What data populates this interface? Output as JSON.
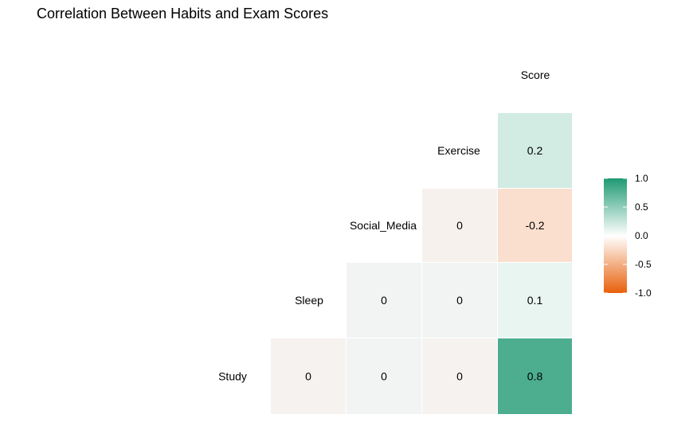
{
  "chart_data": {
    "type": "heatmap",
    "title": "Correlation Between Habits and Exam Scores",
    "variables": [
      "Study",
      "Sleep",
      "Social_Media",
      "Exercise",
      "Score"
    ],
    "cells": [
      {
        "row": "Study",
        "col": "Sleep",
        "value": 0,
        "label": "0"
      },
      {
        "row": "Study",
        "col": "Social_Media",
        "value": 0,
        "label": "0"
      },
      {
        "row": "Study",
        "col": "Exercise",
        "value": 0,
        "label": "0"
      },
      {
        "row": "Study",
        "col": "Score",
        "value": 0.8,
        "label": "0.8"
      },
      {
        "row": "Sleep",
        "col": "Social_Media",
        "value": 0,
        "label": "0"
      },
      {
        "row": "Sleep",
        "col": "Exercise",
        "value": 0,
        "label": "0"
      },
      {
        "row": "Sleep",
        "col": "Score",
        "value": 0.1,
        "label": "0.1"
      },
      {
        "row": "Social_Media",
        "col": "Exercise",
        "value": 0,
        "label": "0"
      },
      {
        "row": "Social_Media",
        "col": "Score",
        "value": -0.2,
        "label": "-0.2"
      },
      {
        "row": "Exercise",
        "col": "Score",
        "value": 0.2,
        "label": "0.2"
      }
    ],
    "legend": {
      "title": "",
      "range": [
        -1,
        1
      ],
      "ticks": [
        1.0,
        0.5,
        0.0,
        -0.5,
        -1.0
      ],
      "tick_labels": [
        "1.0",
        "0.5",
        "0.0",
        "-0.5",
        "-1.0"
      ],
      "low_color": "#e8600a",
      "mid_color": "#ffffff",
      "high_color": "#1f9a73",
      "position": "right"
    },
    "grid": false
  }
}
